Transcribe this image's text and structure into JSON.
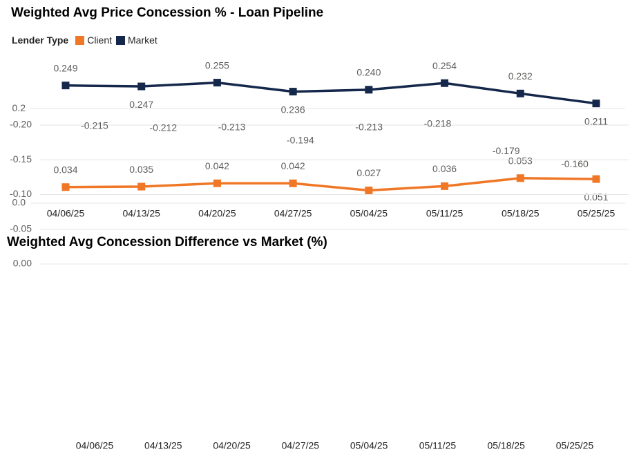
{
  "line_chart": {
    "title": "Weighted Avg Price Concession % - Loan Pipeline",
    "legend_title": "Lender Type",
    "y_ticks": [
      "0.2",
      "0.0"
    ]
  },
  "bar_chart": {
    "title": "Weighted Avg Concession Difference vs Market (%)",
    "y_ticks": [
      "0.00",
      "-0.05",
      "-0.10",
      "-0.15",
      "-0.20"
    ]
  },
  "chart_data": [
    {
      "type": "line",
      "title": "Weighted Avg Price Concession % - Loan Pipeline",
      "legend_title": "Lender Type",
      "x": [
        "04/06/25",
        "04/13/25",
        "04/20/25",
        "04/27/25",
        "05/04/25",
        "05/11/25",
        "05/18/25",
        "05/25/25"
      ],
      "series": [
        {
          "name": "Client",
          "color": "#F07726",
          "values": [
            0.034,
            0.035,
            0.042,
            0.042,
            0.027,
            0.036,
            0.053,
            0.051
          ]
        },
        {
          "name": "Market",
          "color": "#15284B",
          "values": [
            0.249,
            0.247,
            0.255,
            0.236,
            0.24,
            0.254,
            0.232,
            0.211
          ]
        }
      ],
      "data_labels": {
        "Client": [
          "0.034",
          "0.035",
          "0.042",
          "0.042",
          "0.027",
          "0.036",
          "0.053",
          "0.051"
        ],
        "Market": [
          "0.249",
          "0.247",
          "0.255",
          "0.236",
          "0.240",
          "0.254",
          "0.232",
          "0.211"
        ]
      },
      "y_ticks": [
        0.0,
        0.2
      ],
      "legend_position": "top-left",
      "grid": true
    },
    {
      "type": "bar",
      "title": "Weighted Avg Concession Difference vs Market (%)",
      "categories": [
        "04/06/25",
        "04/13/25",
        "04/20/25",
        "04/27/25",
        "05/04/25",
        "05/11/25",
        "05/18/25",
        "05/25/25"
      ],
      "values": [
        -0.215,
        -0.212,
        -0.213,
        -0.194,
        -0.213,
        -0.218,
        -0.179,
        -0.16
      ],
      "data_labels": [
        "-0.215",
        "-0.212",
        "-0.213",
        "-0.194",
        "-0.213",
        "-0.218",
        "-0.179",
        "-0.160"
      ],
      "color": "#F07726",
      "y_ticks": [
        0.0,
        -0.05,
        -0.1,
        -0.15,
        -0.2
      ],
      "ylim": [
        -0.22,
        0.0
      ],
      "grid": true
    }
  ]
}
